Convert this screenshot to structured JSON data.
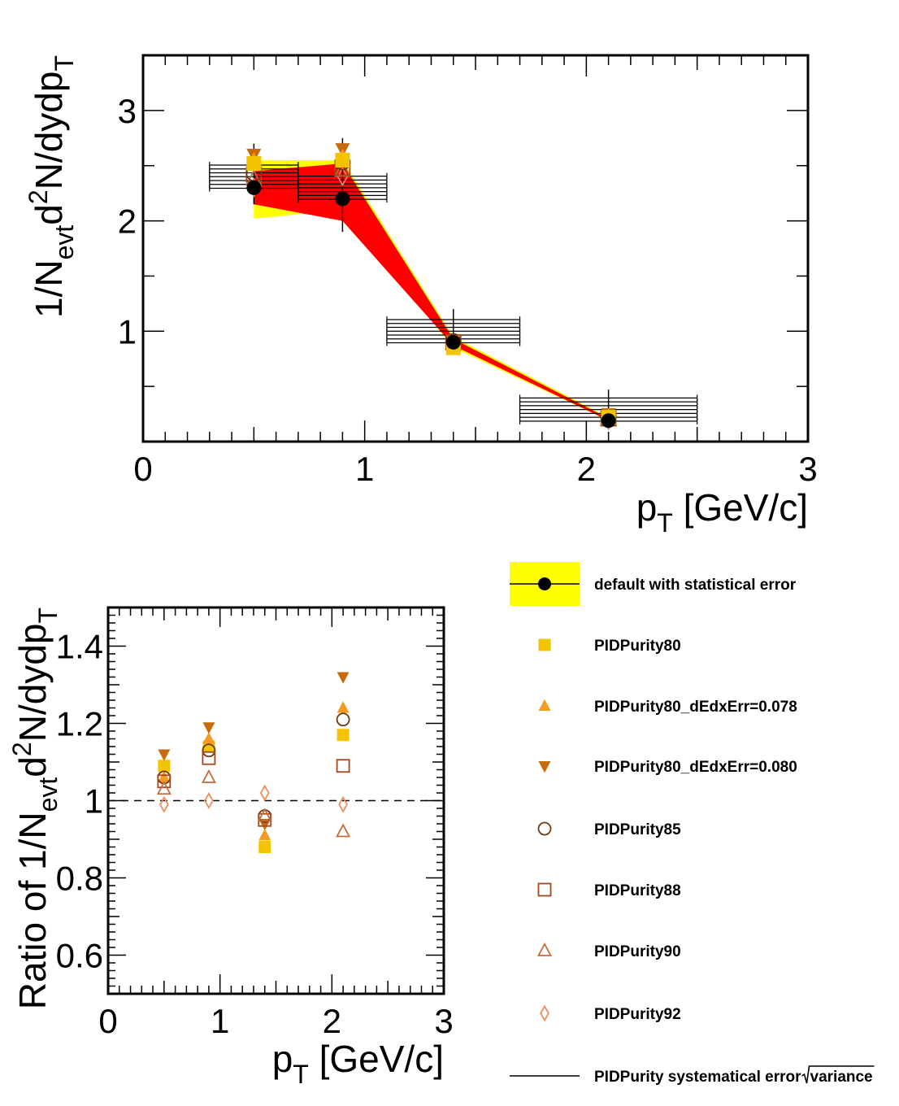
{
  "colors": {
    "sys_band": "#ffff00",
    "var_band": "#ff0000",
    "default": "#000000",
    "purity80": "#f5c400",
    "purity80_e078": "#f59b1e",
    "purity80_e080": "#c8690a",
    "purity85": "#6b3a12",
    "purity88": "#a5471d",
    "purity90": "#c46a3a",
    "purity92": "#ee8f5e"
  },
  "chart_data": [
    {
      "type": "scatter",
      "title": "",
      "xlabel_main": "p",
      "xlabel_sub": "T",
      "xlabel_unit": " [GeV/c]",
      "ylabel_parts": [
        "1/N",
        "evt",
        "d",
        "2",
        "N/dydp",
        "T"
      ],
      "xlim": [
        0,
        3
      ],
      "ylim": [
        0,
        3.5
      ],
      "xticks": [
        0,
        1,
        2,
        3
      ],
      "yticks": [
        1,
        2,
        3
      ],
      "grid": false,
      "yellow_band": {
        "x": [
          0.5,
          0.9,
          1.4,
          2.1
        ],
        "upper": [
          2.55,
          2.55,
          0.95,
          0.22
        ],
        "lower": [
          2.02,
          2.1,
          0.85,
          0.19
        ]
      },
      "red_band": {
        "x": [
          0.5,
          0.9,
          1.4,
          2.1
        ],
        "upper": [
          2.45,
          2.52,
          0.93,
          0.21
        ],
        "lower": [
          2.15,
          2.0,
          0.87,
          0.19
        ]
      },
      "series": [
        {
          "marker": "filled-circle",
          "color_key": "default",
          "x": [
            0.5,
            0.9,
            1.4,
            2.1
          ],
          "y": [
            2.3,
            2.2,
            0.9,
            0.19
          ],
          "xerr": [
            0.2,
            0.2,
            0.3,
            0.4
          ],
          "yerr": [
            0.15,
            0.3,
            0.05,
            0.03
          ]
        },
        {
          "marker": "filled-square",
          "color_key": "purity80",
          "x": [
            0.5,
            0.9,
            1.4,
            2.1
          ],
          "y": [
            2.52,
            2.55,
            0.85,
            0.22
          ]
        },
        {
          "marker": "filled-triangle-up",
          "color_key": "purity80_e078",
          "x": [
            0.5,
            0.9,
            1.4,
            2.1
          ],
          "y": [
            2.55,
            2.58,
            0.88,
            0.23
          ]
        },
        {
          "marker": "filled-triangle-down",
          "color_key": "purity80_e080",
          "x": [
            0.5,
            0.9,
            1.4,
            2.1
          ],
          "y": [
            2.6,
            2.65,
            0.91,
            0.25
          ]
        },
        {
          "marker": "open-circle",
          "color_key": "purity85",
          "x": [
            0.5,
            0.9,
            1.4,
            2.1
          ],
          "y": [
            2.43,
            2.53,
            0.91,
            0.22
          ]
        },
        {
          "marker": "open-square",
          "color_key": "purity88",
          "x": [
            0.5,
            0.9,
            1.4,
            2.1
          ],
          "y": [
            2.42,
            2.48,
            0.9,
            0.21
          ]
        },
        {
          "marker": "open-triangle-up",
          "color_key": "purity90",
          "x": [
            0.5,
            0.9,
            1.4,
            2.1
          ],
          "y": [
            2.38,
            2.46,
            0.89,
            0.2
          ]
        },
        {
          "marker": "open-diamond",
          "color_key": "purity92",
          "x": [
            0.5,
            0.9,
            1.4,
            2.1
          ],
          "y": [
            2.3,
            2.4,
            0.88,
            0.19
          ]
        }
      ]
    },
    {
      "type": "scatter",
      "title": "",
      "xlabel_main": "p",
      "xlabel_sub": "T",
      "xlabel_unit": " [GeV/c]",
      "ylabel_parts": [
        "Ratio of 1/N",
        "evt",
        "d",
        "2",
        "N/dydp",
        "T"
      ],
      "xlim": [
        0,
        3
      ],
      "ylim": [
        0.5,
        1.5
      ],
      "xticks": [
        0,
        1,
        2,
        3
      ],
      "yticks": [
        0.6,
        0.8,
        1,
        1.2,
        1.4
      ],
      "ytick_labels": [
        "0.6",
        "0.8",
        "1",
        "1.2",
        "1.4"
      ],
      "reference_line": 1,
      "grid": false,
      "series": [
        {
          "marker": "filled-square",
          "color_key": "purity80",
          "x": [
            0.5,
            0.9,
            1.4,
            2.1
          ],
          "y": [
            1.09,
            1.14,
            0.88,
            1.17
          ]
        },
        {
          "marker": "filled-triangle-up",
          "color_key": "purity80_e078",
          "x": [
            0.5,
            0.9,
            1.4,
            2.1
          ],
          "y": [
            1.06,
            1.16,
            0.91,
            1.24
          ]
        },
        {
          "marker": "filled-triangle-down",
          "color_key": "purity80_e080",
          "x": [
            0.5,
            0.9,
            1.4,
            2.1
          ],
          "y": [
            1.12,
            1.19,
            0.94,
            1.32
          ]
        },
        {
          "marker": "open-circle",
          "color_key": "purity85",
          "x": [
            0.5,
            0.9,
            1.4,
            2.1
          ],
          "y": [
            1.06,
            1.13,
            0.96,
            1.21
          ]
        },
        {
          "marker": "open-square",
          "color_key": "purity88",
          "x": [
            0.5,
            0.9,
            1.4,
            2.1
          ],
          "y": [
            1.05,
            1.11,
            0.95,
            1.09
          ]
        },
        {
          "marker": "open-triangle-up",
          "color_key": "purity90",
          "x": [
            0.5,
            0.9,
            1.4,
            2.1
          ],
          "y": [
            1.03,
            1.06,
            0.96,
            0.92
          ]
        },
        {
          "marker": "open-diamond",
          "color_key": "purity92",
          "x": [
            0.5,
            0.9,
            1.4,
            2.1
          ],
          "y": [
            0.99,
            1.0,
            1.02,
            0.99
          ]
        }
      ]
    }
  ],
  "legend": {
    "placement": "right of lower plot",
    "entries": [
      {
        "label": "default with statistical error",
        "marker": "filled-circle-band",
        "color_key": "default"
      },
      {
        "label": "PIDPurity80",
        "marker": "filled-square",
        "color_key": "purity80"
      },
      {
        "label": "PIDPurity80_dEdxErr=0.078",
        "marker": "filled-triangle-up",
        "color_key": "purity80_e078"
      },
      {
        "label": "PIDPurity80_dEdxErr=0.080",
        "marker": "filled-triangle-down",
        "color_key": "purity80_e080"
      },
      {
        "label": "PIDPurity85",
        "marker": "open-circle",
        "color_key": "purity85"
      },
      {
        "label": "PIDPurity88",
        "marker": "open-square",
        "color_key": "purity88"
      },
      {
        "label": "PIDPurity90",
        "marker": "open-triangle-up",
        "color_key": "purity90"
      },
      {
        "label": "PIDPurity92",
        "marker": "open-diamond",
        "color_key": "purity92"
      },
      {
        "label": "PIDPurity systematical error ",
        "label_sqrt": "variance",
        "marker": "line",
        "color_key": "default"
      }
    ]
  }
}
